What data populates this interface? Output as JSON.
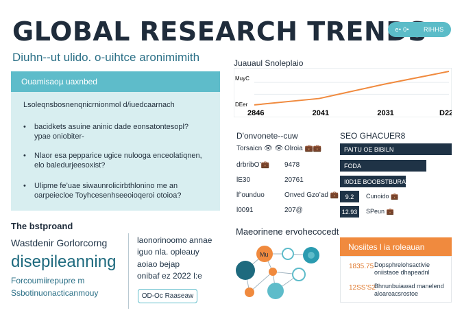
{
  "header": {
    "title": "GLOBAL RESEARCH TRENDS",
    "pill_left": "e• 0•",
    "pill_right": "RIHHS",
    "subtitle": "Diuhn--ut ulido. o-uihtce aronimimith"
  },
  "info_card": {
    "heading": "Ouamisaoµ uaxnbed",
    "intro": "Lsoleqnsbosnenqnicrnionmol d/iuedcaarnach",
    "bullets": [
      {
        "line1": "bacidkets asuine aninic dade eonsatontesopl?",
        "line2": "ypae oniobiter-"
      },
      {
        "line1": "Nlaor esa pepparice ugice nulooga enceolatiqnen,",
        "line2": "elo baledurjeesoxist?"
      },
      {
        "line1": "Ulipme fe’uae siwaunrolicirbthlonino me an",
        "line2": "oarpeiecloe Toyhcesenhseeoioqeroi otoioa?"
      }
    ]
  },
  "bottom_left": {
    "heading": "The bstproand",
    "subheading": "Wastdenir Gorlorcorng",
    "big_text": "disepileanning",
    "line1": "Forcoumiirepupre m",
    "line2": "Ssbotinuonacticanmouy"
  },
  "bottom_middle": {
    "lines": [
      "laonorinoomo annae",
      "iguo nla. opleauy",
      "aoiao bejap",
      "onibaf ez 2022 l:e"
    ],
    "button_label": "OD-Oc Raaseaw"
  },
  "line_chart": {
    "heading": "Juauaul Snoleplaio",
    "y_top_label": "MuyC",
    "y_bottom_label": "DEer"
  },
  "chart_data": {
    "type": "line",
    "title": "Juauaul Snoleplaio",
    "categories": [
      "2846",
      "2041",
      "2031",
      "D22"
    ],
    "series": [
      {
        "name": "",
        "color": "#f08a3e",
        "values": [
          4,
          22,
          62,
          98
        ]
      }
    ],
    "ylim": [
      0,
      100
    ],
    "grid": true
  },
  "middle_table": {
    "heading": "D'onvonete--cuw",
    "rows": [
      {
        "a": "Torsaicn 👁 👁",
        "b": "Olroia 💼💼"
      },
      {
        "a": "drbribO’💼",
        "b": "9478"
      },
      {
        "a": "lE30",
        "b": "20761"
      },
      {
        "a": "lf’ounduo",
        "b": "Onved Gzo’ad 💼"
      },
      {
        "a": "l0091",
        "b": "207@"
      }
    ]
  },
  "right_bars": {
    "heading": "SEO GHACUER8",
    "bars": [
      {
        "label": "PAITU OE BIBILN",
        "fraction": 1.0
      },
      {
        "label": "FODA",
        "fraction": 0.77
      },
      {
        "label": "I0D1E BOOBSTBURAY",
        "fraction": 0.59
      }
    ],
    "items": [
      {
        "value": "9.2",
        "label": "Cunoido 💼"
      },
      {
        "value": "12.93",
        "label": "SPeun 💼"
      }
    ]
  },
  "network": {
    "heading": "Maeorinene ervohecocedt",
    "center_label": "Mu"
  },
  "orange_panel": {
    "heading": "Nosiites l ia roleauan",
    "items": [
      {
        "value": "1835.75",
        "line1": "Dopsphrelohsactivie",
        "line2": "oniistaoe dhapeadnl"
      },
      {
        "value": "12SS’S2",
        "line1": "Bhnunbuiawad manelend",
        "line2": "aloareacsrostoe"
      }
    ]
  },
  "colors": {
    "accent_teal": "#5ebcca",
    "navy": "#1f3346",
    "orange": "#f08a3e",
    "card_bg": "#d8eef0"
  }
}
